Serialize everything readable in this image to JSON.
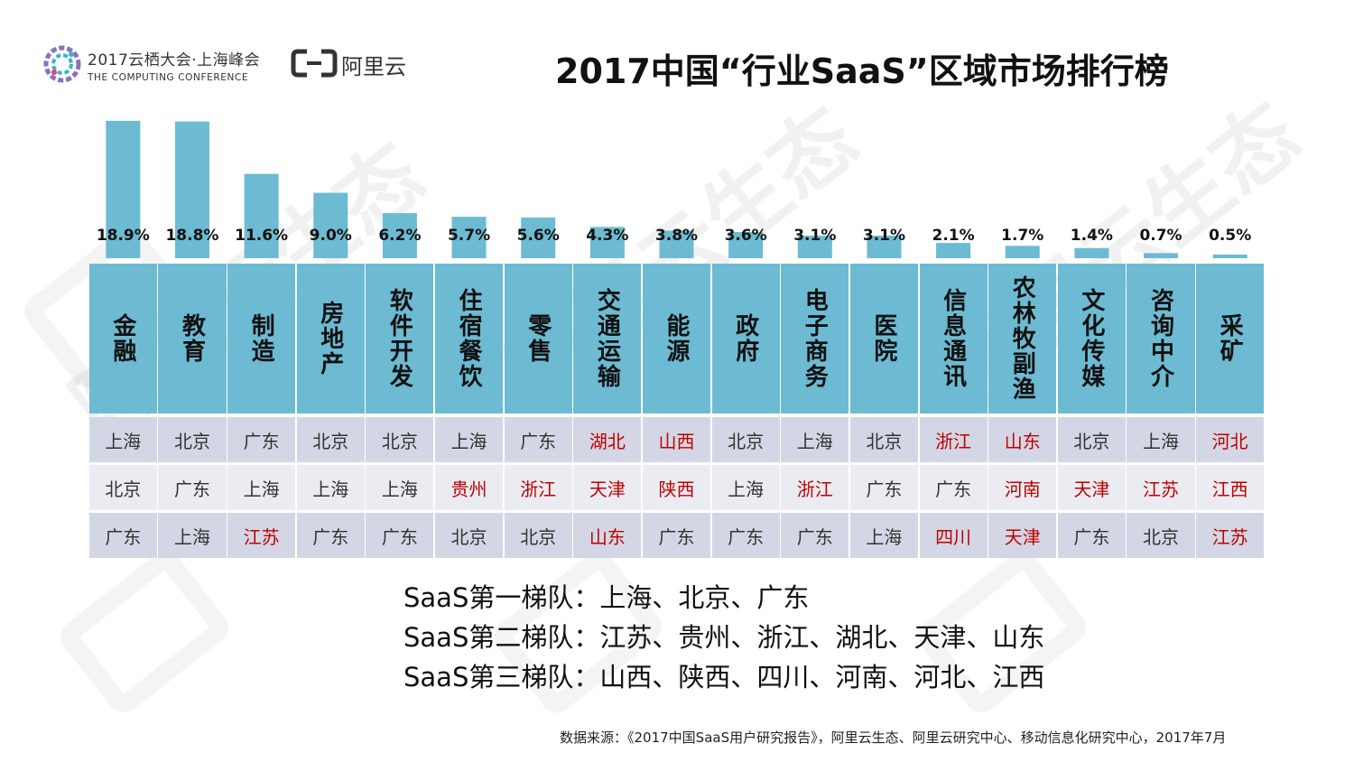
{
  "header": {
    "conference_title": "2017云栖大会·上海峰会",
    "conference_subtitle": "THE COMPUTING CONFERENCE",
    "brand": "阿里云"
  },
  "title": "2017中国“行业SaaS”区域市场排行榜",
  "watermark": "阿里云生态",
  "colors": {
    "bar": "#6cbbd2",
    "row_dark": "#d3d7e5",
    "row_light": "#eaecf2",
    "highlight": "#c00000"
  },
  "chart_data": {
    "type": "bar",
    "title": "2017中国“行业SaaS”区域市场排行榜",
    "categories": [
      "金融",
      "教育",
      "制造",
      "房地产",
      "软件开发",
      "住宿餐饮",
      "零售",
      "交通运输",
      "能源",
      "政府",
      "电子商务",
      "医院",
      "信息通讯",
      "农林牧副渔",
      "文化传媒",
      "咨询中介",
      "采矿"
    ],
    "values": [
      18.9,
      18.8,
      11.6,
      9.0,
      6.2,
      5.7,
      5.6,
      4.3,
      3.8,
      3.6,
      3.1,
      3.1,
      2.1,
      1.7,
      1.4,
      0.7,
      0.5
    ],
    "value_labels": [
      "18.9%",
      "18.8%",
      "11.6%",
      "9.0%",
      "6.2%",
      "5.7%",
      "5.6%",
      "4.3%",
      "3.8%",
      "3.6%",
      "3.1%",
      "3.1%",
      "2.1%",
      "1.7%",
      "1.4%",
      "0.7%",
      "0.5%"
    ],
    "unit": "%",
    "ylim": [
      0,
      19
    ],
    "grid": false,
    "legend": "none"
  },
  "rankings": [
    [
      "上海",
      "北京",
      "广东",
      "北京",
      "北京",
      "上海",
      "广东",
      "湖北",
      "山西",
      "北京",
      "上海",
      "北京",
      "浙江",
      "山东",
      "北京",
      "上海",
      "河北"
    ],
    [
      "北京",
      "广东",
      "上海",
      "上海",
      "上海",
      "贵州",
      "浙江",
      "天津",
      "陕西",
      "上海",
      "浙江",
      "广东",
      "广东",
      "河南",
      "天津",
      "江苏",
      "江西"
    ],
    [
      "广东",
      "上海",
      "江苏",
      "广东",
      "广东",
      "北京",
      "北京",
      "山东",
      "广东",
      "广东",
      "广东",
      "上海",
      "四川",
      "天津",
      "广东",
      "北京",
      "江苏"
    ]
  ],
  "highlighted_provinces": [
    "湖北",
    "山西",
    "河北",
    "贵州",
    "浙江",
    "天津",
    "陕西",
    "河南",
    "江苏",
    "江西",
    "山东",
    "四川"
  ],
  "tiers": [
    "SaaS第一梯队：上海、北京、广东",
    "SaaS第二梯队：江苏、贵州、浙江、湖北、天津、山东",
    "SaaS第三梯队：山西、陕西、四川、河南、河北、江西"
  ],
  "source": "数据来源：《2017中国SaaS用户研究报告》，阿里云生态、阿里云研究中心、移动信息化研究中心，2017年7月"
}
